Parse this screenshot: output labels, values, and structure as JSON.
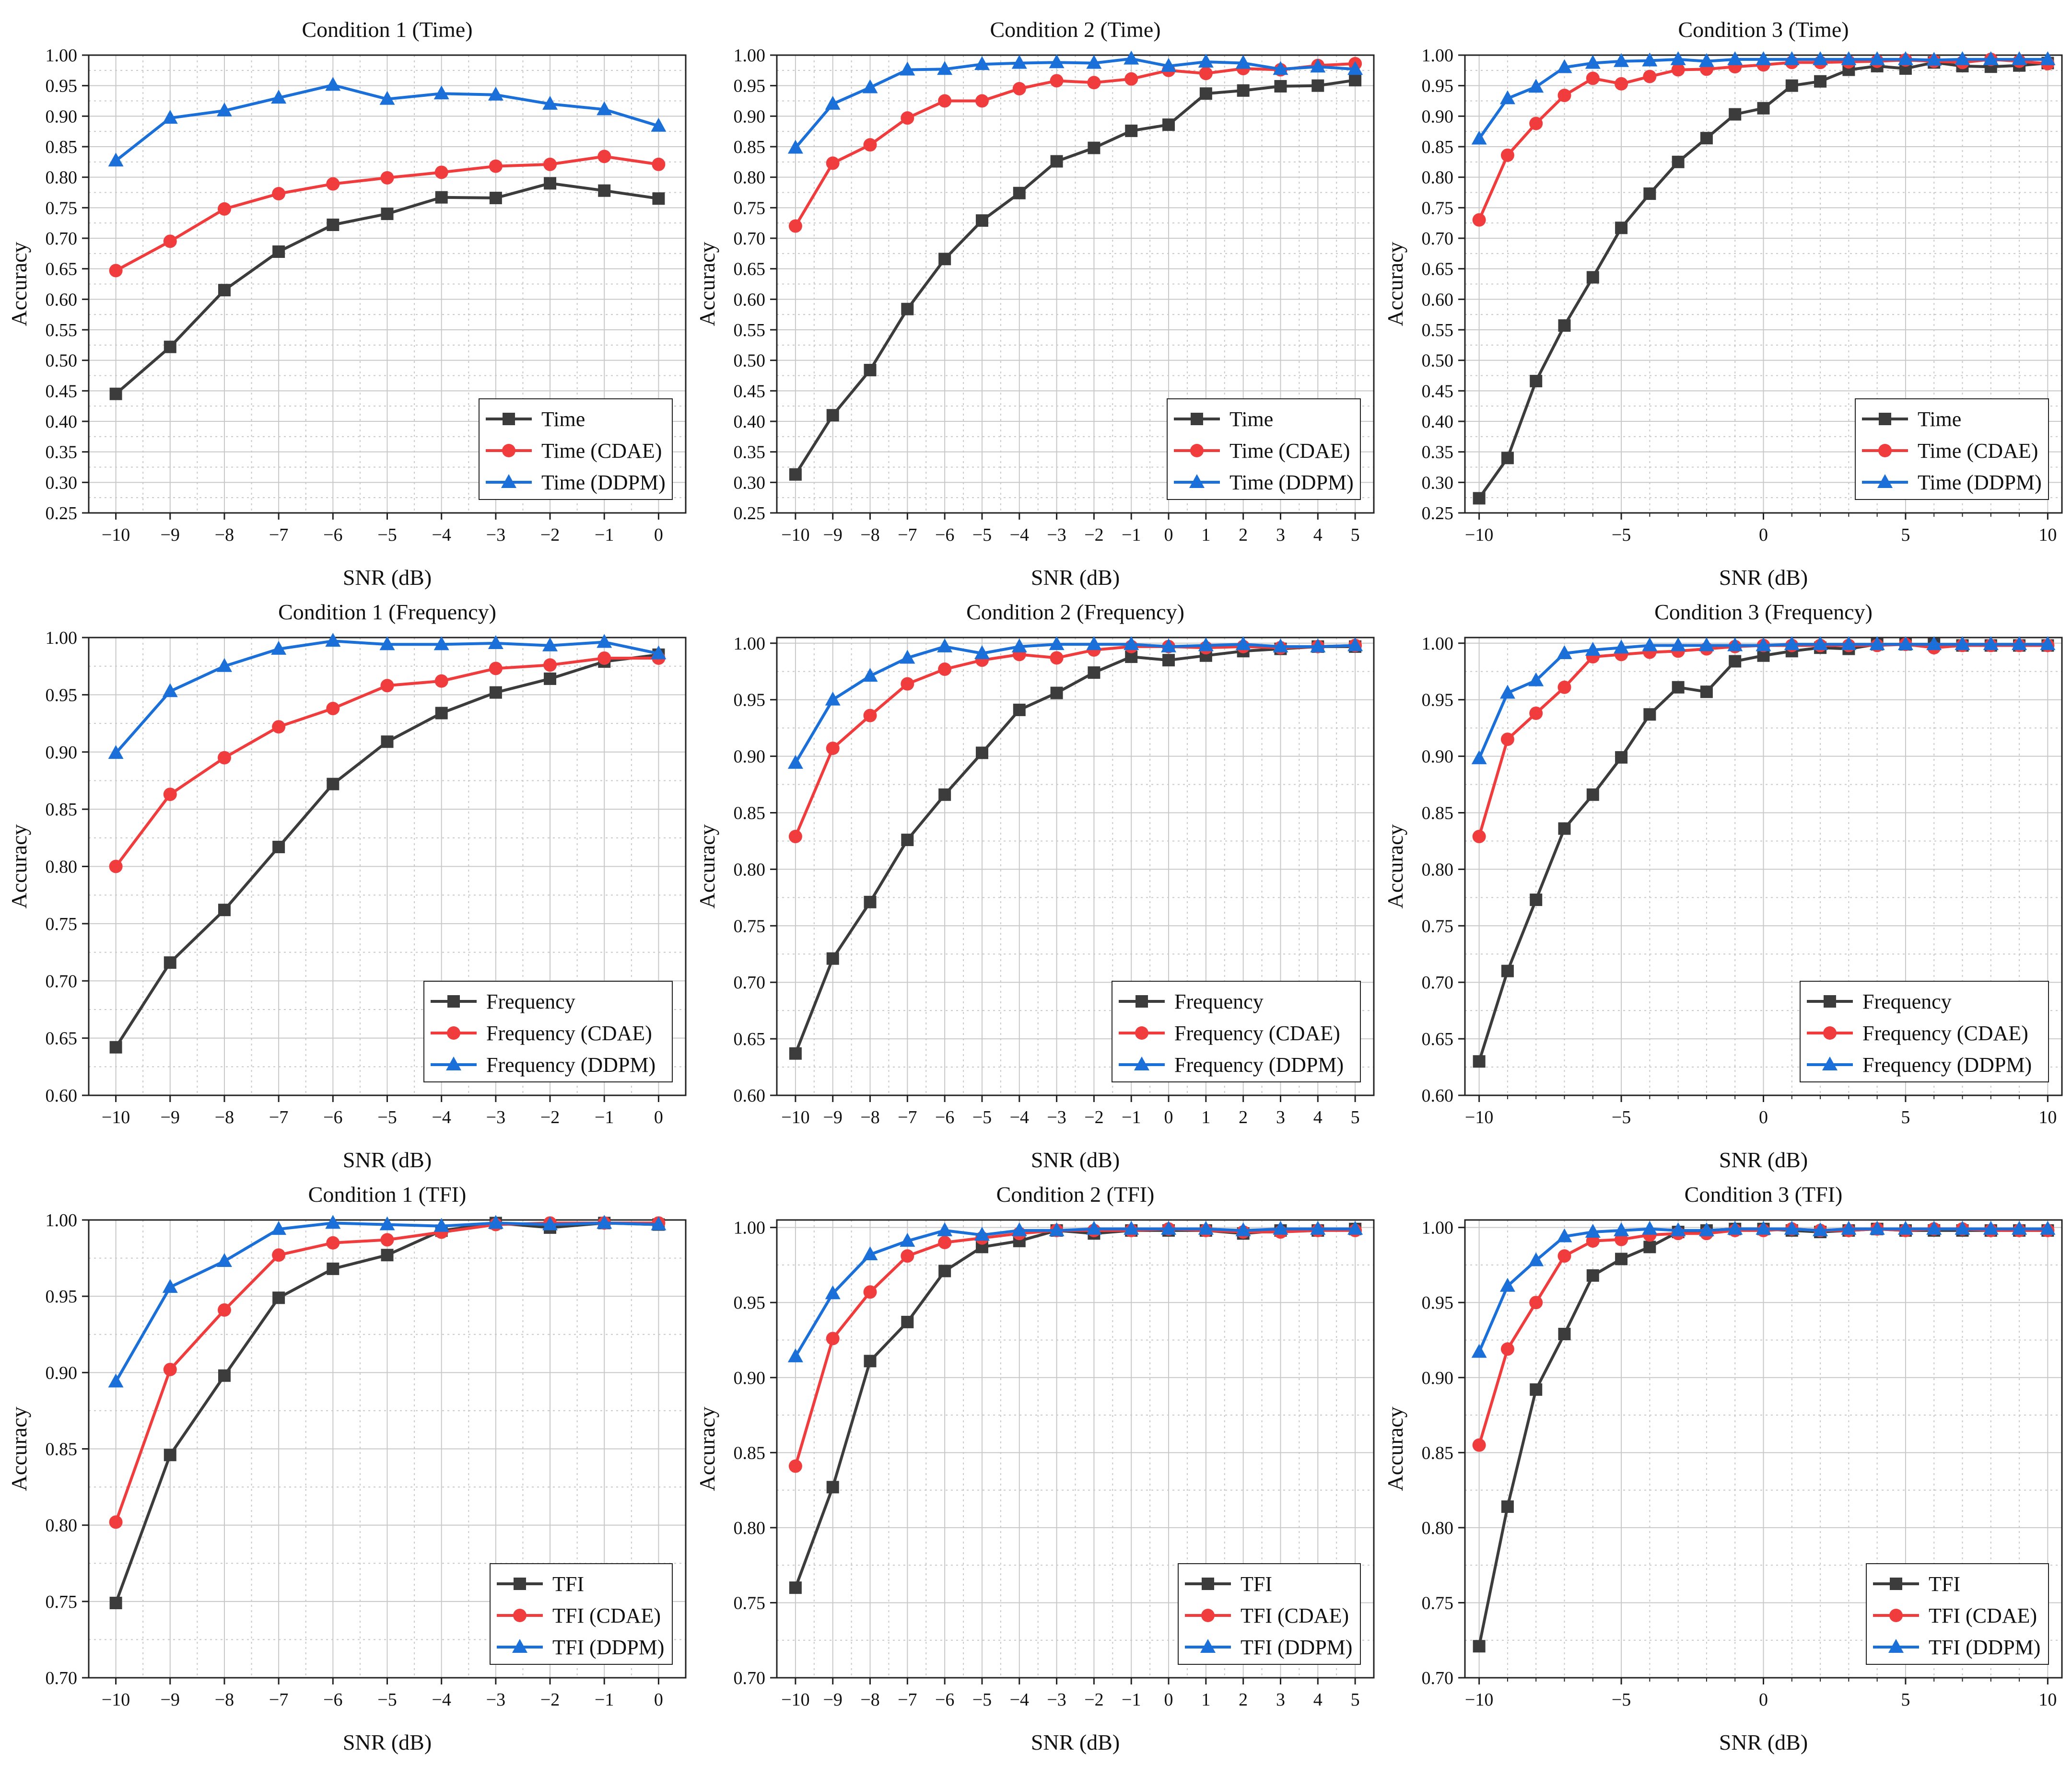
{
  "colors": {
    "base": "#3c3c3c",
    "cdae": "#f03c3c",
    "ddpm": "#1a6fd8",
    "grid": "#c8c8c8",
    "axis": "#222222"
  },
  "common": {
    "xlabel": "SNR (dB)",
    "ylabel": "Accuracy"
  },
  "chart_data": [
    {
      "type": "line",
      "title": "Condition 1 (Time)",
      "xlabel": "SNR (dB)",
      "ylabel": "Accuracy",
      "xlim": [
        -10.5,
        0.5
      ],
      "ylim": [
        0.25,
        1.0
      ],
      "xticks": [
        -10,
        -9,
        -8,
        -7,
        -6,
        -5,
        -4,
        -3,
        -2,
        -1,
        0
      ],
      "yticks": [
        0.25,
        0.3,
        0.35,
        0.4,
        0.45,
        0.5,
        0.55,
        0.6,
        0.65,
        0.7,
        0.75,
        0.8,
        0.85,
        0.9,
        0.95,
        1.0
      ],
      "grid": true,
      "legend_position": "bottom-right",
      "x": [
        -10,
        -9,
        -8,
        -7,
        -6,
        -5,
        -4,
        -3,
        -2,
        -1,
        0
      ],
      "series": [
        {
          "name": "Time",
          "marker": "square",
          "values": [
            0.445,
            0.522,
            0.615,
            0.678,
            0.722,
            0.74,
            0.767,
            0.766,
            0.79,
            0.778,
            0.765
          ]
        },
        {
          "name": "Time (CDAE)",
          "marker": "circle",
          "values": [
            0.647,
            0.695,
            0.748,
            0.773,
            0.789,
            0.799,
            0.808,
            0.818,
            0.821,
            0.834,
            0.821
          ]
        },
        {
          "name": "Time (DDPM)",
          "marker": "triangle",
          "values": [
            0.827,
            0.897,
            0.909,
            0.93,
            0.951,
            0.928,
            0.937,
            0.935,
            0.92,
            0.911,
            0.884
          ]
        }
      ]
    },
    {
      "type": "line",
      "title": "Condition 2 (Time)",
      "xlabel": "SNR (dB)",
      "ylabel": "Accuracy",
      "xlim": [
        -10.5,
        5.5
      ],
      "ylim": [
        0.25,
        1.0
      ],
      "xticks": [
        -10,
        -9,
        -8,
        -7,
        -6,
        -5,
        -4,
        -3,
        -2,
        -1,
        0,
        1,
        2,
        3,
        4,
        5
      ],
      "yticks": [
        0.25,
        0.3,
        0.35,
        0.4,
        0.45,
        0.5,
        0.55,
        0.6,
        0.65,
        0.7,
        0.75,
        0.8,
        0.85,
        0.9,
        0.95,
        1.0
      ],
      "grid": true,
      "legend_position": "bottom-right",
      "x": [
        -10,
        -9,
        -8,
        -7,
        -6,
        -5,
        -4,
        -3,
        -2,
        -1,
        0,
        1,
        2,
        3,
        4,
        5
      ],
      "series": [
        {
          "name": "Time",
          "marker": "square",
          "values": [
            0.313,
            0.41,
            0.484,
            0.584,
            0.666,
            0.729,
            0.774,
            0.826,
            0.848,
            0.876,
            0.886,
            0.937,
            0.942,
            0.949,
            0.95,
            0.959
          ]
        },
        {
          "name": "Time (CDAE)",
          "marker": "circle",
          "values": [
            0.72,
            0.823,
            0.853,
            0.897,
            0.925,
            0.925,
            0.945,
            0.958,
            0.955,
            0.961,
            0.975,
            0.97,
            0.978,
            0.976,
            0.983,
            0.986
          ]
        },
        {
          "name": "Time (DDPM)",
          "marker": "triangle",
          "values": [
            0.848,
            0.92,
            0.947,
            0.976,
            0.977,
            0.985,
            0.987,
            0.988,
            0.987,
            0.994,
            0.982,
            0.989,
            0.987,
            0.977,
            0.981,
            0.977
          ]
        }
      ]
    },
    {
      "type": "line",
      "title": "Condition 3 (Time)",
      "xlabel": "SNR (dB)",
      "ylabel": "Accuracy",
      "xlim": [
        -10.5,
        10.5
      ],
      "ylim": [
        0.25,
        1.0
      ],
      "xticks": [
        -10,
        -5,
        0,
        5,
        10
      ],
      "xminor": true,
      "yticks": [
        0.25,
        0.3,
        0.35,
        0.4,
        0.45,
        0.5,
        0.55,
        0.6,
        0.65,
        0.7,
        0.75,
        0.8,
        0.85,
        0.9,
        0.95,
        1.0
      ],
      "grid": true,
      "legend_position": "bottom-right",
      "x": [
        -10,
        -9,
        -8,
        -7,
        -6,
        -5,
        -4,
        -3,
        -2,
        -1,
        0,
        1,
        2,
        3,
        4,
        5,
        6,
        7,
        8,
        9,
        10
      ],
      "series": [
        {
          "name": "Time",
          "marker": "square",
          "values": [
            0.274,
            0.34,
            0.466,
            0.557,
            0.636,
            0.717,
            0.773,
            0.825,
            0.864,
            0.903,
            0.913,
            0.95,
            0.957,
            0.976,
            0.982,
            0.978,
            0.988,
            0.982,
            0.981,
            0.983,
            0.987
          ]
        },
        {
          "name": "Time (CDAE)",
          "marker": "circle",
          "values": [
            0.73,
            0.836,
            0.888,
            0.934,
            0.962,
            0.953,
            0.965,
            0.976,
            0.977,
            0.981,
            0.984,
            0.988,
            0.988,
            0.989,
            0.99,
            0.992,
            0.99,
            0.988,
            0.993,
            0.99,
            0.986
          ]
        },
        {
          "name": "Time (DDPM)",
          "marker": "triangle",
          "values": [
            0.863,
            0.929,
            0.948,
            0.98,
            0.987,
            0.99,
            0.991,
            0.993,
            0.99,
            0.993,
            0.993,
            0.993,
            0.993,
            0.993,
            0.993,
            0.993,
            0.992,
            0.993,
            0.993,
            0.993,
            0.993
          ]
        }
      ]
    },
    {
      "type": "line",
      "title": "Condition 1 (Frequency)",
      "xlabel": "SNR (dB)",
      "ylabel": "Accuracy",
      "xlim": [
        -10.5,
        0.5
      ],
      "ylim": [
        0.6,
        1.0
      ],
      "xticks": [
        -10,
        -9,
        -8,
        -7,
        -6,
        -5,
        -4,
        -3,
        -2,
        -1,
        0
      ],
      "yticks": [
        0.6,
        0.65,
        0.7,
        0.75,
        0.8,
        0.85,
        0.9,
        0.95,
        1.0
      ],
      "grid": true,
      "legend_position": "bottom-right",
      "x": [
        -10,
        -9,
        -8,
        -7,
        -6,
        -5,
        -4,
        -3,
        -2,
        -1,
        0
      ],
      "series": [
        {
          "name": "Frequency",
          "marker": "square",
          "values": [
            0.642,
            0.716,
            0.762,
            0.817,
            0.872,
            0.909,
            0.934,
            0.952,
            0.964,
            0.979,
            0.985
          ]
        },
        {
          "name": "Frequency (CDAE)",
          "marker": "circle",
          "values": [
            0.8,
            0.863,
            0.895,
            0.922,
            0.938,
            0.958,
            0.962,
            0.973,
            0.976,
            0.982,
            0.982
          ]
        },
        {
          "name": "Frequency (DDPM)",
          "marker": "triangle",
          "values": [
            0.899,
            0.953,
            0.975,
            0.99,
            0.997,
            0.994,
            0.994,
            0.995,
            0.993,
            0.996,
            0.986
          ]
        }
      ]
    },
    {
      "type": "line",
      "title": "Condition 2 (Frequency)",
      "xlabel": "SNR (dB)",
      "ylabel": "Accuracy",
      "xlim": [
        -10.5,
        5.5
      ],
      "ylim": [
        0.6,
        1.005
      ],
      "xticks": [
        -10,
        -9,
        -8,
        -7,
        -6,
        -5,
        -4,
        -3,
        -2,
        -1,
        0,
        1,
        2,
        3,
        4,
        5
      ],
      "yticks": [
        0.6,
        0.65,
        0.7,
        0.75,
        0.8,
        0.85,
        0.9,
        0.95,
        1.0
      ],
      "grid": true,
      "legend_position": "bottom-right",
      "x": [
        -10,
        -9,
        -8,
        -7,
        -6,
        -5,
        -4,
        -3,
        -2,
        -1,
        0,
        1,
        2,
        3,
        4,
        5
      ],
      "series": [
        {
          "name": "Frequency",
          "marker": "square",
          "values": [
            0.637,
            0.721,
            0.771,
            0.826,
            0.866,
            0.903,
            0.941,
            0.956,
            0.974,
            0.988,
            0.985,
            0.989,
            0.993,
            0.995,
            0.997,
            0.997
          ]
        },
        {
          "name": "Frequency (CDAE)",
          "marker": "circle",
          "values": [
            0.829,
            0.907,
            0.936,
            0.964,
            0.977,
            0.985,
            0.99,
            0.987,
            0.994,
            0.997,
            0.997,
            0.996,
            0.997,
            0.996,
            0.997,
            0.998
          ]
        },
        {
          "name": "Frequency (DDPM)",
          "marker": "triangle",
          "values": [
            0.894,
            0.95,
            0.971,
            0.987,
            0.997,
            0.991,
            0.997,
            0.999,
            0.999,
            0.999,
            0.997,
            0.998,
            0.999,
            0.997,
            0.997,
            0.998
          ]
        }
      ]
    },
    {
      "type": "line",
      "title": "Condition 3 (Frequency)",
      "xlabel": "SNR (dB)",
      "ylabel": "Accuracy",
      "xlim": [
        -10.5,
        10.5
      ],
      "ylim": [
        0.6,
        1.005
      ],
      "xticks": [
        -10,
        -5,
        0,
        5,
        10
      ],
      "xminor": true,
      "yticks": [
        0.6,
        0.65,
        0.7,
        0.75,
        0.8,
        0.85,
        0.9,
        0.95,
        1.0
      ],
      "grid": true,
      "legend_position": "bottom-right",
      "x": [
        -10,
        -9,
        -8,
        -7,
        -6,
        -5,
        -4,
        -3,
        -2,
        -1,
        0,
        1,
        2,
        3,
        4,
        5,
        6,
        7,
        8,
        9,
        10
      ],
      "series": [
        {
          "name": "Frequency",
          "marker": "square",
          "values": [
            0.63,
            0.71,
            0.773,
            0.836,
            0.866,
            0.899,
            0.937,
            0.961,
            0.957,
            0.984,
            0.989,
            0.993,
            0.996,
            0.995,
            0.999,
            0.999,
            0.999,
            0.998,
            0.998,
            0.998,
            0.998
          ]
        },
        {
          "name": "Frequency (CDAE)",
          "marker": "circle",
          "values": [
            0.829,
            0.915,
            0.938,
            0.961,
            0.988,
            0.99,
            0.992,
            0.993,
            0.995,
            0.997,
            0.998,
            0.998,
            0.998,
            0.998,
            0.998,
            0.999,
            0.996,
            0.998,
            0.998,
            0.998,
            0.998
          ]
        },
        {
          "name": "Frequency (DDPM)",
          "marker": "triangle",
          "values": [
            0.898,
            0.956,
            0.967,
            0.991,
            0.994,
            0.996,
            0.998,
            0.998,
            0.998,
            0.998,
            0.998,
            0.999,
            0.999,
            0.999,
            0.999,
            0.999,
            0.999,
            0.999,
            0.999,
            0.999,
            0.999
          ]
        }
      ]
    },
    {
      "type": "line",
      "title": "Condition 1 (TFI)",
      "xlabel": "SNR (dB)",
      "ylabel": "Accuracy",
      "xlim": [
        -10.5,
        0.5
      ],
      "ylim": [
        0.7,
        1.0
      ],
      "xticks": [
        -10,
        -9,
        -8,
        -7,
        -6,
        -5,
        -4,
        -3,
        -2,
        -1,
        0
      ],
      "yticks": [
        0.7,
        0.75,
        0.8,
        0.85,
        0.9,
        0.95,
        1.0
      ],
      "grid": true,
      "legend_position": "bottom-right",
      "x": [
        -10,
        -9,
        -8,
        -7,
        -6,
        -5,
        -4,
        -3,
        -2,
        -1,
        0
      ],
      "series": [
        {
          "name": "TFI",
          "marker": "square",
          "values": [
            0.749,
            0.846,
            0.898,
            0.949,
            0.968,
            0.977,
            0.993,
            0.998,
            0.995,
            0.998,
            0.997
          ]
        },
        {
          "name": "TFI (CDAE)",
          "marker": "circle",
          "values": [
            0.802,
            0.902,
            0.941,
            0.977,
            0.985,
            0.987,
            0.992,
            0.997,
            0.998,
            0.998,
            0.998
          ]
        },
        {
          "name": "TFI (DDPM)",
          "marker": "triangle",
          "values": [
            0.894,
            0.956,
            0.973,
            0.994,
            0.998,
            0.997,
            0.996,
            0.998,
            0.997,
            0.998,
            0.997
          ]
        }
      ]
    },
    {
      "type": "line",
      "title": "Condition 2 (TFI)",
      "xlabel": "SNR (dB)",
      "ylabel": "Accuracy",
      "xlim": [
        -10.5,
        5.5
      ],
      "ylim": [
        0.7,
        1.005
      ],
      "xticks": [
        -10,
        -9,
        -8,
        -7,
        -6,
        -5,
        -4,
        -3,
        -2,
        -1,
        0,
        1,
        2,
        3,
        4,
        5
      ],
      "yticks": [
        0.7,
        0.75,
        0.8,
        0.85,
        0.9,
        0.95,
        1.0
      ],
      "grid": true,
      "legend_position": "bottom-right",
      "x": [
        -10,
        -9,
        -8,
        -7,
        -6,
        -5,
        -4,
        -3,
        -2,
        -1,
        0,
        1,
        2,
        3,
        4,
        5
      ],
      "series": [
        {
          "name": "TFI",
          "marker": "square",
          "values": [
            0.76,
            0.827,
            0.911,
            0.937,
            0.971,
            0.987,
            0.991,
            0.998,
            0.996,
            0.998,
            0.998,
            0.998,
            0.996,
            0.998,
            0.998,
            0.999
          ]
        },
        {
          "name": "TFI (CDAE)",
          "marker": "circle",
          "values": [
            0.841,
            0.926,
            0.957,
            0.981,
            0.99,
            0.993,
            0.996,
            0.998,
            0.998,
            0.998,
            0.999,
            0.998,
            0.997,
            0.997,
            0.998,
            0.998
          ]
        },
        {
          "name": "TFI (DDPM)",
          "marker": "triangle",
          "values": [
            0.914,
            0.956,
            0.982,
            0.991,
            0.998,
            0.995,
            0.998,
            0.998,
            0.999,
            0.999,
            0.999,
            0.999,
            0.998,
            0.999,
            0.999,
            0.999
          ]
        }
      ]
    },
    {
      "type": "line",
      "title": "Condition 3 (TFI)",
      "xlabel": "SNR (dB)",
      "ylabel": "Accuracy",
      "xlim": [
        -10.5,
        10.5
      ],
      "ylim": [
        0.7,
        1.005
      ],
      "xticks": [
        -10,
        -5,
        0,
        5,
        10
      ],
      "xminor": true,
      "yticks": [
        0.7,
        0.75,
        0.8,
        0.85,
        0.9,
        0.95,
        1.0
      ],
      "grid": true,
      "legend_position": "bottom-right",
      "x": [
        -10,
        -9,
        -8,
        -7,
        -6,
        -5,
        -4,
        -3,
        -2,
        -1,
        0,
        1,
        2,
        3,
        4,
        5,
        6,
        7,
        8,
        9,
        10
      ],
      "series": [
        {
          "name": "TFI",
          "marker": "square",
          "values": [
            0.721,
            0.814,
            0.892,
            0.929,
            0.968,
            0.979,
            0.987,
            0.997,
            0.998,
            0.999,
            0.999,
            0.998,
            0.997,
            0.998,
            0.999,
            0.998,
            0.998,
            0.998,
            0.998,
            0.998,
            0.998
          ]
        },
        {
          "name": "TFI (CDAE)",
          "marker": "circle",
          "values": [
            0.855,
            0.919,
            0.95,
            0.981,
            0.991,
            0.992,
            0.995,
            0.996,
            0.996,
            0.998,
            0.998,
            0.999,
            0.998,
            0.998,
            0.999,
            0.998,
            0.999,
            0.999,
            0.998,
            0.998,
            0.998
          ]
        },
        {
          "name": "TFI (DDPM)",
          "marker": "triangle",
          "values": [
            0.917,
            0.961,
            0.978,
            0.994,
            0.997,
            0.998,
            0.999,
            0.998,
            0.998,
            0.999,
            0.999,
            0.999,
            0.998,
            0.999,
            0.999,
            0.999,
            0.999,
            0.999,
            0.999,
            0.999,
            0.999
          ]
        }
      ]
    }
  ]
}
